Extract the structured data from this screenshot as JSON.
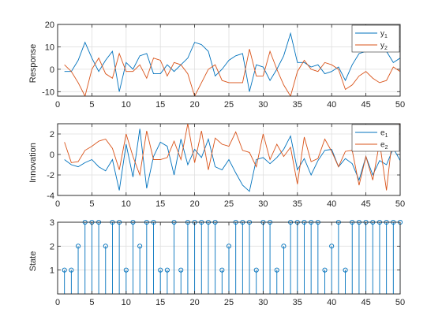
{
  "chart_data": [
    {
      "type": "line",
      "ylabel": "Response",
      "xlim": [
        0,
        50
      ],
      "ylim": [
        -12,
        20
      ],
      "xticks": [
        0,
        5,
        10,
        15,
        20,
        25,
        30,
        35,
        40,
        45,
        50
      ],
      "yticks": [
        -10,
        0,
        10,
        20
      ],
      "grid": true,
      "legend": "top-right",
      "colors": [
        "#0072BD",
        "#D95319"
      ],
      "x": [
        1,
        2,
        3,
        4,
        5,
        6,
        7,
        8,
        9,
        10,
        11,
        12,
        13,
        14,
        15,
        16,
        17,
        18,
        19,
        20,
        21,
        22,
        23,
        24,
        25,
        26,
        27,
        28,
        29,
        30,
        31,
        32,
        33,
        34,
        35,
        36,
        37,
        38,
        39,
        40,
        41,
        42,
        43,
        44,
        45,
        46,
        47,
        48,
        49,
        50
      ],
      "series": [
        {
          "name": "y",
          "subscript": "1",
          "values": [
            -1,
            -1,
            4,
            12,
            5,
            -1,
            4,
            8,
            -10,
            3,
            0,
            6,
            7,
            -2,
            -2,
            2,
            -1,
            2,
            5,
            12,
            11,
            8,
            -3,
            0,
            4,
            6,
            7,
            -10,
            2,
            1,
            -5,
            0,
            6,
            16,
            3,
            3,
            1,
            2,
            -2,
            -1,
            1,
            -5,
            2,
            7,
            8,
            8,
            8,
            8,
            3,
            5
          ]
        },
        {
          "name": "y",
          "subscript": "2",
          "values": [
            2,
            -1,
            -6,
            -12,
            0,
            5,
            -2,
            -4,
            7,
            -1,
            -1,
            2,
            -4,
            5,
            4,
            -3,
            3,
            2,
            -2,
            -12,
            -6,
            0,
            2,
            -5,
            -6,
            -6,
            -6,
            9,
            -3,
            -3,
            8,
            0,
            -7,
            -12,
            -1,
            4,
            0,
            -1,
            3,
            2,
            0,
            -9,
            -7,
            -3,
            -1,
            -4,
            -6,
            -5,
            1,
            -1
          ]
        }
      ]
    },
    {
      "type": "line",
      "ylabel": "Innovation",
      "xlim": [
        0,
        50
      ],
      "ylim": [
        -4,
        3
      ],
      "xticks": [
        0,
        5,
        10,
        15,
        20,
        25,
        30,
        35,
        40,
        45,
        50
      ],
      "yticks": [
        -4,
        -2,
        0,
        2
      ],
      "grid": true,
      "legend": "top-right",
      "colors": [
        "#0072BD",
        "#D95319"
      ],
      "x": [
        1,
        2,
        3,
        4,
        5,
        6,
        7,
        8,
        9,
        10,
        11,
        12,
        13,
        14,
        15,
        16,
        17,
        18,
        19,
        20,
        21,
        22,
        23,
        24,
        25,
        26,
        27,
        28,
        29,
        30,
        31,
        32,
        33,
        34,
        35,
        36,
        37,
        38,
        39,
        40,
        41,
        42,
        43,
        44,
        45,
        46,
        47,
        48,
        49,
        50
      ],
      "series": [
        {
          "name": "e",
          "subscript": "1",
          "values": [
            -0.5,
            -1,
            -1.2,
            -0.8,
            -0.5,
            -1.2,
            -1.6,
            -0.5,
            -3.5,
            1.0,
            -2.2,
            2.5,
            -3.3,
            -0.2,
            1.2,
            0.8,
            -2.0,
            1.5,
            -1.0,
            0.5,
            -0.3,
            1.5,
            -1.2,
            -1.5,
            -0.5,
            -1.8,
            -3.0,
            -3.6,
            -0.5,
            -0.3,
            -0.9,
            -0.3,
            0.5,
            1.8,
            -1.5,
            -0.4,
            -2.0,
            -0.6,
            0.4,
            0.5,
            -1.2,
            -0.4,
            -0.9,
            -2.5,
            -0.2,
            -2.0,
            -0.6,
            -1.0,
            0.6,
            -0.6
          ]
        },
        {
          "name": "e",
          "subscript": "2",
          "values": [
            1.2,
            -0.8,
            -0.7,
            0.4,
            0.8,
            1.3,
            1.5,
            0.6,
            -1.5,
            2.0,
            -0.2,
            -2.0,
            2.3,
            -0.5,
            -0.5,
            -0.3,
            1.3,
            -0.5,
            3.0,
            -0.8,
            2.3,
            -1.5,
            1.6,
            1.0,
            0.8,
            2.2,
            0.4,
            0.2,
            -1.2,
            2.0,
            -0.5,
            1.0,
            -0.2,
            0.7,
            -2.9,
            1.7,
            -0.7,
            -0.4,
            1.5,
            0.3,
            -1.2,
            0.3,
            0.4,
            -3.0,
            -0.2,
            -2.5,
            1.2,
            -3.5,
            2.4,
            3.0
          ]
        }
      ]
    },
    {
      "type": "stem",
      "ylabel": "State",
      "xlim": [
        0,
        50
      ],
      "ylim": [
        0,
        3
      ],
      "xticks": [
        0,
        5,
        10,
        15,
        20,
        25,
        30,
        35,
        40,
        45,
        50
      ],
      "yticks": [
        1,
        2,
        3
      ],
      "grid": true,
      "colors": [
        "#0072BD"
      ],
      "x": [
        1,
        2,
        3,
        4,
        5,
        6,
        7,
        8,
        9,
        10,
        11,
        12,
        13,
        14,
        15,
        16,
        17,
        18,
        19,
        20,
        21,
        22,
        23,
        24,
        25,
        26,
        27,
        28,
        29,
        30,
        31,
        32,
        33,
        34,
        35,
        36,
        37,
        38,
        39,
        40,
        41,
        42,
        43,
        44,
        45,
        46,
        47,
        48,
        49,
        50
      ],
      "values": [
        1,
        1,
        2,
        3,
        3,
        3,
        2,
        3,
        3,
        1,
        3,
        2,
        3,
        3,
        1,
        1,
        3,
        1,
        3,
        3,
        3,
        3,
        3,
        1,
        2,
        3,
        3,
        3,
        1,
        3,
        3,
        1,
        2,
        3,
        3,
        3,
        3,
        3,
        1,
        2,
        3,
        1,
        3,
        3,
        3,
        3,
        3,
        3,
        3,
        3
      ]
    }
  ]
}
